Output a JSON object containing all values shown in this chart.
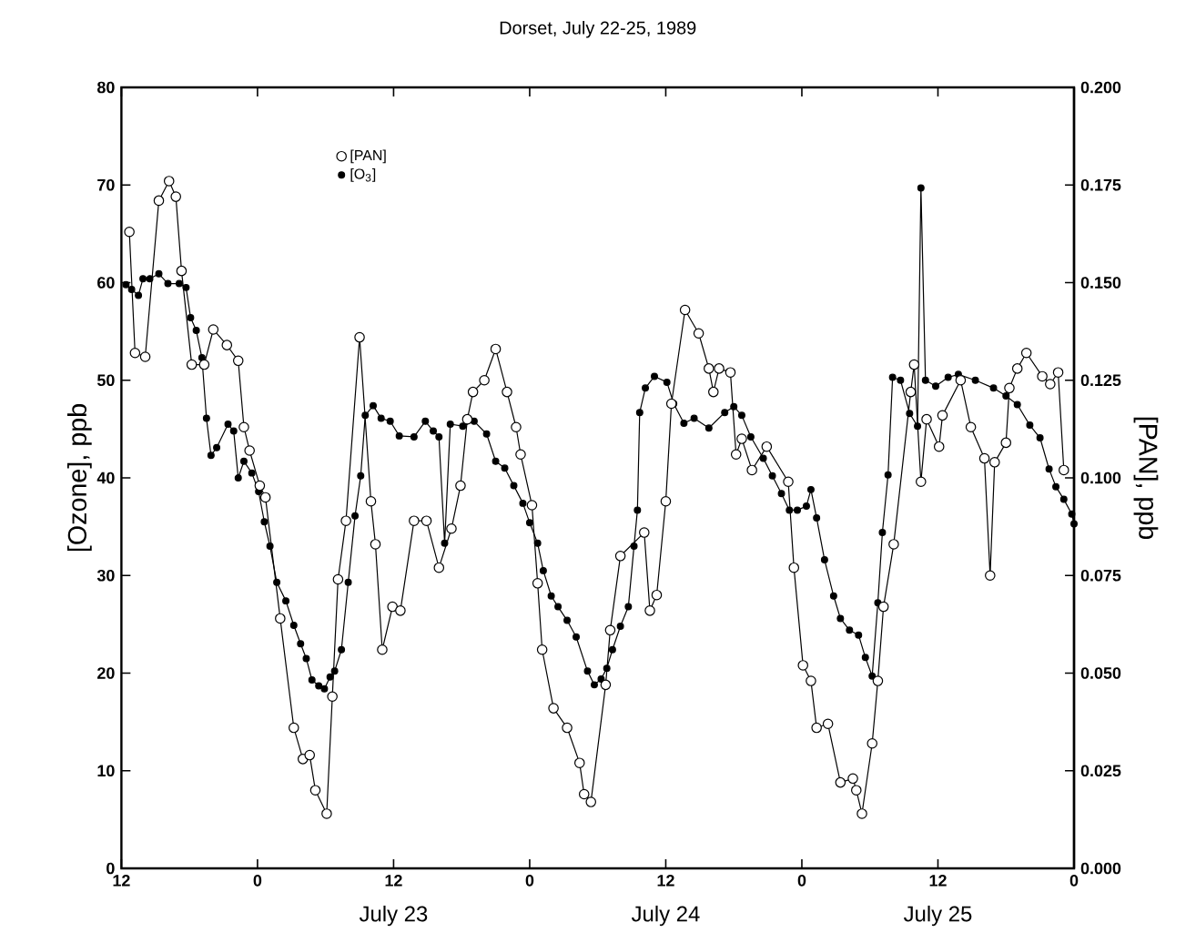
{
  "chart_data": {
    "type": "line",
    "title": "Dorset, July 22-25, 1989",
    "ylabel": "[Ozone], ppb",
    "y2label": "[PAN], ppb",
    "xlim": [
      "1989-07-22T12:00",
      "1989-07-26T00:00"
    ],
    "xticks": [
      {
        "value": "1989-07-22T12:00",
        "label": "12"
      },
      {
        "value": "1989-07-23T00:00",
        "label": "0"
      },
      {
        "value": "1989-07-23T12:00",
        "label": "12"
      },
      {
        "value": "1989-07-24T00:00",
        "label": "0"
      },
      {
        "value": "1989-07-24T12:00",
        "label": "12"
      },
      {
        "value": "1989-07-25T00:00",
        "label": "0"
      },
      {
        "value": "1989-07-25T12:00",
        "label": "12"
      },
      {
        "value": "1989-07-26T00:00",
        "label": "0"
      }
    ],
    "ylim": [
      0,
      80
    ],
    "yticks": [
      0,
      10,
      20,
      30,
      40,
      50,
      60,
      70,
      80
    ],
    "y2lim": [
      0,
      0.2
    ],
    "y2ticks": [
      {
        "value": 0,
        "label": "0.000"
      },
      {
        "value": 0.025,
        "label": "0.025"
      },
      {
        "value": 0.05,
        "label": "0.050"
      },
      {
        "value": 0.075,
        "label": "0.075"
      },
      {
        "value": 0.1,
        "label": "0.100"
      },
      {
        "value": 0.125,
        "label": "0.125"
      },
      {
        "value": 0.15,
        "label": "0.150"
      },
      {
        "value": 0.175,
        "label": "0.175"
      },
      {
        "value": 0.2,
        "label": "0.200"
      }
    ],
    "annotations": [
      "July 23",
      "July 24",
      "July 25"
    ],
    "legend": "top left",
    "marker": "circle",
    "line_style": "solid",
    "series": [
      {
        "name": "[PAN]",
        "color": "#000000",
        "axis": "y2",
        "x": [
          "1989-07-22T12:42",
          "1989-07-22T13:12",
          "1989-07-22T14:06",
          "1989-07-22T15:18",
          "1989-07-22T16:12",
          "1989-07-22T16:48",
          "1989-07-22T17:18",
          "1989-07-22T18:12",
          "1989-07-22T19:18",
          "1989-07-22T20:06",
          "1989-07-22T21:18",
          "1989-07-22T22:18",
          "1989-07-22T22:48",
          "1989-07-22T23:18",
          "1989-07-23T00:12",
          "1989-07-23T00:42",
          "1989-07-23T02:00",
          "1989-07-23T03:12",
          "1989-07-23T04:00",
          "1989-07-23T04:36",
          "1989-07-23T05:06",
          "1989-07-23T06:06",
          "1989-07-23T06:36",
          "1989-07-23T07:06",
          "1989-07-23T07:48",
          "1989-07-23T09:00",
          "1989-07-23T10:00",
          "1989-07-23T10:24",
          "1989-07-23T11:00",
          "1989-07-23T11:54",
          "1989-07-23T12:36",
          "1989-07-23T13:48",
          "1989-07-23T14:54",
          "1989-07-23T16:00",
          "1989-07-23T17:06",
          "1989-07-23T17:54",
          "1989-07-23T18:30",
          "1989-07-23T19:00",
          "1989-07-23T20:00",
          "1989-07-23T21:00",
          "1989-07-23T22:00",
          "1989-07-23T22:48",
          "1989-07-23T23:12",
          "1989-07-24T00:12",
          "1989-07-24T00:42",
          "1989-07-24T01:06",
          "1989-07-24T02:06",
          "1989-07-24T03:18",
          "1989-07-24T04:24",
          "1989-07-24T04:48",
          "1989-07-24T05:24",
          "1989-07-24T06:42",
          "1989-07-24T07:06",
          "1989-07-24T08:00",
          "1989-07-24T10:06",
          "1989-07-24T10:36",
          "1989-07-24T11:12",
          "1989-07-24T12:00",
          "1989-07-24T12:30",
          "1989-07-24T13:42",
          "1989-07-24T14:54",
          "1989-07-24T15:48",
          "1989-07-24T16:12",
          "1989-07-24T16:42",
          "1989-07-24T17:42",
          "1989-07-24T18:12",
          "1989-07-24T18:42",
          "1989-07-24T19:36",
          "1989-07-24T20:54",
          "1989-07-24T22:48",
          "1989-07-24T23:18",
          "1989-07-25T00:06",
          "1989-07-25T00:48",
          "1989-07-25T01:18",
          "1989-07-25T02:18",
          "1989-07-25T03:24",
          "1989-07-25T04:30",
          "1989-07-25T04:48",
          "1989-07-25T05:18",
          "1989-07-25T06:12",
          "1989-07-25T06:42",
          "1989-07-25T07:12",
          "1989-07-25T08:06",
          "1989-07-25T09:36",
          "1989-07-25T09:54",
          "1989-07-25T10:30",
          "1989-07-25T11:00",
          "1989-07-25T12:06",
          "1989-07-25T12:24",
          "1989-07-25T14:00",
          "1989-07-25T14:54",
          "1989-07-25T16:06",
          "1989-07-25T16:36",
          "1989-07-25T17:00",
          "1989-07-25T18:00",
          "1989-07-25T18:18",
          "1989-07-25T19:00",
          "1989-07-25T19:48",
          "1989-07-25T21:12",
          "1989-07-25T21:54",
          "1989-07-25T22:36",
          "1989-07-25T23:06"
        ],
        "values": [
          0.163,
          0.132,
          0.131,
          0.171,
          0.176,
          0.172,
          0.153,
          0.129,
          0.129,
          0.138,
          0.134,
          0.13,
          0.113,
          0.107,
          0.098,
          0.095,
          0.064,
          0.036,
          0.028,
          0.029,
          0.02,
          0.014,
          0.044,
          0.074,
          0.089,
          0.136,
          0.094,
          0.083,
          0.056,
          0.067,
          0.066,
          0.089,
          0.089,
          0.077,
          0.087,
          0.098,
          0.115,
          0.122,
          0.125,
          0.133,
          0.122,
          0.113,
          0.106,
          0.093,
          0.073,
          0.056,
          0.041,
          0.036,
          0.027,
          0.019,
          0.017,
          0.047,
          0.061,
          0.08,
          0.086,
          0.066,
          0.07,
          0.094,
          0.119,
          0.143,
          0.137,
          0.128,
          0.122,
          0.128,
          0.127,
          0.106,
          0.11,
          0.102,
          0.108,
          0.099,
          0.077,
          0.052,
          0.048,
          0.036,
          0.037,
          0.022,
          0.023,
          0.02,
          0.014,
          0.032,
          0.048,
          0.067,
          0.083,
          0.122,
          0.129,
          0.099,
          0.115,
          0.108,
          0.116,
          0.125,
          0.113,
          0.105,
          0.075,
          0.104,
          0.109,
          0.123,
          0.128,
          0.132,
          0.126,
          0.124,
          0.127,
          0.102
        ]
      },
      {
        "name": "[O$_{3}$]",
        "color": "#000000",
        "axis": "y",
        "x": [
          "1989-07-22T12:24",
          "1989-07-22T12:54",
          "1989-07-22T13:30",
          "1989-07-22T13:54",
          "1989-07-22T14:30",
          "1989-07-22T15:18",
          "1989-07-22T16:06",
          "1989-07-22T17:06",
          "1989-07-22T17:42",
          "1989-07-22T18:06",
          "1989-07-22T18:36",
          "1989-07-22T19:06",
          "1989-07-22T19:30",
          "1989-07-22T19:54",
          "1989-07-22T20:24",
          "1989-07-22T21:24",
          "1989-07-22T21:54",
          "1989-07-22T22:18",
          "1989-07-22T22:48",
          "1989-07-22T23:30",
          "1989-07-23T00:06",
          "1989-07-23T00:36",
          "1989-07-23T01:06",
          "1989-07-23T01:42",
          "1989-07-23T02:30",
          "1989-07-23T03:12",
          "1989-07-23T03:48",
          "1989-07-23T04:18",
          "1989-07-23T04:48",
          "1989-07-23T05:24",
          "1989-07-23T05:54",
          "1989-07-23T06:24",
          "1989-07-23T06:48",
          "1989-07-23T07:24",
          "1989-07-23T08:00",
          "1989-07-23T08:36",
          "1989-07-23T09:06",
          "1989-07-23T09:30",
          "1989-07-23T10:12",
          "1989-07-23T10:54",
          "1989-07-23T11:42",
          "1989-07-23T12:30",
          "1989-07-23T13:48",
          "1989-07-23T14:48",
          "1989-07-23T15:30",
          "1989-07-23T16:00",
          "1989-07-23T16:30",
          "1989-07-23T17:00",
          "1989-07-23T18:06",
          "1989-07-23T19:06",
          "1989-07-23T20:12",
          "1989-07-23T21:00",
          "1989-07-23T21:48",
          "1989-07-23T22:36",
          "1989-07-23T23:24",
          "1989-07-24T00:00",
          "1989-07-24T00:42",
          "1989-07-24T01:12",
          "1989-07-24T01:54",
          "1989-07-24T02:30",
          "1989-07-24T03:18",
          "1989-07-24T04:06",
          "1989-07-24T05:06",
          "1989-07-24T05:42",
          "1989-07-24T06:18",
          "1989-07-24T06:48",
          "1989-07-24T07:18",
          "1989-07-24T08:00",
          "1989-07-24T08:42",
          "1989-07-24T09:12",
          "1989-07-24T09:30",
          "1989-07-24T09:42",
          "1989-07-24T10:12",
          "1989-07-24T11:00",
          "1989-07-24T12:06",
          "1989-07-24T12:42",
          "1989-07-24T13:36",
          "1989-07-24T14:30",
          "1989-07-24T15:48",
          "1989-07-24T17:12",
          "1989-07-24T18:00",
          "1989-07-24T18:42",
          "1989-07-24T19:30",
          "1989-07-24T20:36",
          "1989-07-24T21:24",
          "1989-07-24T22:12",
          "1989-07-24T22:54",
          "1989-07-24T23:36",
          "1989-07-25T00:24",
          "1989-07-25T00:48",
          "1989-07-25T01:18",
          "1989-07-25T02:00",
          "1989-07-25T02:48",
          "1989-07-25T03:24",
          "1989-07-25T04:12",
          "1989-07-25T05:00",
          "1989-07-25T05:36",
          "1989-07-25T06:12",
          "1989-07-25T06:42",
          "1989-07-25T07:06",
          "1989-07-25T07:36",
          "1989-07-25T08:00",
          "1989-07-25T08:42",
          "1989-07-25T09:30",
          "1989-07-25T10:12",
          "1989-07-25T10:30",
          "1989-07-25T10:54",
          "1989-07-25T11:48",
          "1989-07-25T12:54",
          "1989-07-25T13:48",
          "1989-07-25T15:18",
          "1989-07-25T16:54",
          "1989-07-25T18:00",
          "1989-07-25T19:00",
          "1989-07-25T20:06",
          "1989-07-25T21:00",
          "1989-07-25T21:48",
          "1989-07-25T22:24",
          "1989-07-25T23:06",
          "1989-07-25T23:48",
          "1989-07-26T00:00"
        ],
        "values": [
          59.8,
          59.3,
          58.7,
          60.4,
          60.4,
          60.9,
          59.9,
          59.9,
          59.5,
          56.4,
          55.1,
          52.3,
          46.1,
          42.3,
          43.1,
          45.5,
          44.8,
          40.0,
          41.7,
          40.5,
          38.6,
          35.5,
          33.0,
          29.3,
          27.4,
          24.9,
          23.0,
          21.5,
          19.3,
          18.7,
          18.4,
          19.6,
          20.2,
          22.4,
          29.3,
          36.1,
          40.2,
          46.4,
          47.4,
          46.1,
          45.8,
          44.3,
          44.2,
          45.8,
          44.8,
          44.2,
          33.3,
          45.5,
          45.3,
          45.8,
          44.5,
          41.7,
          41.0,
          39.2,
          37.4,
          35.4,
          33.3,
          30.5,
          27.9,
          26.8,
          25.4,
          23.7,
          20.2,
          18.8,
          19.4,
          20.5,
          22.4,
          24.8,
          26.8,
          33.0,
          36.7,
          46.7,
          49.2,
          50.4,
          49.8,
          47.6,
          45.6,
          46.1,
          45.1,
          46.7,
          47.3,
          46.4,
          44.2,
          42.0,
          40.2,
          38.4,
          36.7,
          36.7,
          37.1,
          38.8,
          35.9,
          31.6,
          27.9,
          25.6,
          24.4,
          23.9,
          21.6,
          19.7,
          27.2,
          34.4,
          40.3,
          50.3,
          50.0,
          46.6,
          45.3,
          69.7,
          50.0,
          49.4,
          50.3,
          50.6,
          50.0,
          49.2,
          48.4,
          47.5,
          45.4,
          44.1,
          40.9,
          39.1,
          37.8,
          36.3,
          35.3
        ]
      }
    ]
  }
}
